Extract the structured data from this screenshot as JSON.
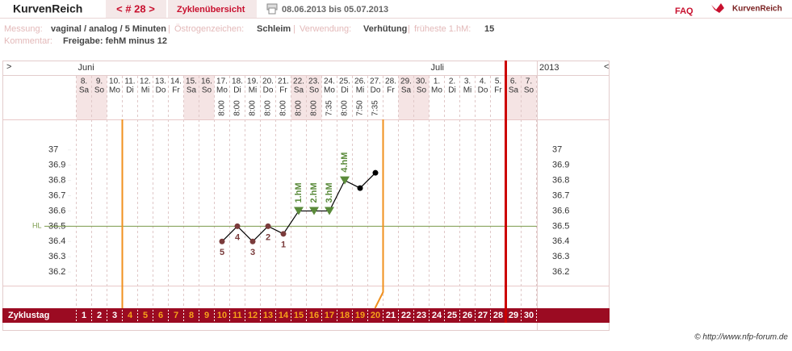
{
  "header": {
    "title": "KurvenReich",
    "cycle_nav": "< # 28 >",
    "overview": "Zyklenübersicht",
    "date_range": "08.06.2013 bis 05.07.2013",
    "faq": "FAQ",
    "logo": "KurvenReich"
  },
  "info": {
    "measurement_label": "Messung:",
    "measurement": "vaginal / analog / 5 Minuten",
    "estrogen_label": "Östrogenzeichen:",
    "estrogen": "Schleim",
    "usage_label": "Verwendung:",
    "usage": "Verhütung",
    "earliest_label": "früheste 1.hM:",
    "earliest": "15",
    "comment_label": "Kommentar:",
    "comment": "Freigabe: fehM minus 12"
  },
  "chart_data": {
    "type": "line",
    "nav_left": ">",
    "nav_right": "<",
    "months": [
      "Juni",
      "Juli"
    ],
    "year": "2013",
    "categories": [
      "8.",
      "9.",
      "10.",
      "11.",
      "12.",
      "13.",
      "14.",
      "15.",
      "16.",
      "17.",
      "18.",
      "19.",
      "20.",
      "21.",
      "22.",
      "23.",
      "24.",
      "25.",
      "26.",
      "27.",
      "28.",
      "29.",
      "30.",
      "1.",
      "2.",
      "3.",
      "4.",
      "5.",
      "6.",
      "7."
    ],
    "weekdays": [
      "Sa",
      "So",
      "Mo",
      "Di",
      "Mi",
      "Do",
      "Fr",
      "Sa",
      "So",
      "Mo",
      "Di",
      "Mi",
      "Do",
      "Fr",
      "Sa",
      "So",
      "Mo",
      "Di",
      "Mi",
      "Do",
      "Fr",
      "Sa",
      "So",
      "Mo",
      "Di",
      "Mi",
      "Do",
      "Fr",
      "Sa",
      "So"
    ],
    "times": [
      null,
      null,
      null,
      null,
      null,
      null,
      null,
      null,
      null,
      "8:00",
      "8:00",
      "8:00",
      "8:00",
      "8:00",
      "8:00",
      "8:00",
      "7:35",
      "8:00",
      "7:50",
      "7:35",
      null,
      null,
      null,
      null,
      null,
      null,
      null,
      null,
      null,
      null
    ],
    "series": [
      {
        "color": "#000000",
        "values": [
          null,
          null,
          null,
          null,
          null,
          null,
          null,
          null,
          null,
          36.4,
          36.5,
          36.4,
          36.5,
          36.45,
          36.6,
          36.6,
          36.6,
          36.8,
          36.75,
          36.85,
          null,
          null,
          null,
          null,
          null,
          null,
          null,
          null,
          null,
          null
        ],
        "point_shapes": [
          null,
          null,
          null,
          null,
          null,
          null,
          null,
          null,
          null,
          "circle",
          "circle",
          "circle",
          "circle",
          "circle",
          "triangle",
          "triangle",
          "triangle",
          "triangle",
          "circle",
          "circle",
          null,
          null,
          null,
          null,
          null,
          null,
          null,
          null,
          null,
          null
        ],
        "point_colors": [
          null,
          null,
          null,
          null,
          null,
          null,
          null,
          null,
          null,
          "#7a3b3b",
          "#7a3b3b",
          "#7a3b3b",
          "#7a3b3b",
          "#7a3b3b",
          "#5a8a3a",
          "#5a8a3a",
          "#5a8a3a",
          "#5a8a3a",
          "#000000",
          "#000000",
          null,
          null,
          null,
          null,
          null,
          null,
          null,
          null,
          null,
          null
        ],
        "low_labels": [
          null,
          null,
          null,
          null,
          null,
          null,
          null,
          null,
          null,
          "5",
          "4",
          "3",
          "2",
          "1",
          null,
          null,
          null,
          null,
          null,
          null,
          null,
          null,
          null,
          null,
          null,
          null,
          null,
          null,
          null,
          null
        ],
        "high_labels": [
          null,
          null,
          null,
          null,
          null,
          null,
          null,
          null,
          null,
          null,
          null,
          null,
          null,
          null,
          "1.hM",
          "2.hM",
          "3.hM",
          "4.hM",
          null,
          null,
          null,
          null,
          null,
          null,
          null,
          null,
          null,
          null,
          null,
          null
        ]
      }
    ],
    "coverline": {
      "label": "HL",
      "value": 36.5,
      "color": "#7a9a4a"
    },
    "ylim": [
      36.1,
      37.2
    ],
    "yticks": [
      36.2,
      36.3,
      36.4,
      36.5,
      36.6,
      36.7,
      36.8,
      36.9,
      37
    ],
    "cycle_day_label": "Zyklustag",
    "cycle_days": [
      1,
      2,
      3,
      4,
      5,
      6,
      7,
      8,
      9,
      10,
      11,
      12,
      13,
      14,
      15,
      16,
      17,
      18,
      19,
      20,
      21,
      22,
      23,
      24,
      25,
      26,
      27,
      28,
      29,
      30
    ]
  },
  "footer": {
    "copyright": "© http://www.nfp-forum.de"
  }
}
